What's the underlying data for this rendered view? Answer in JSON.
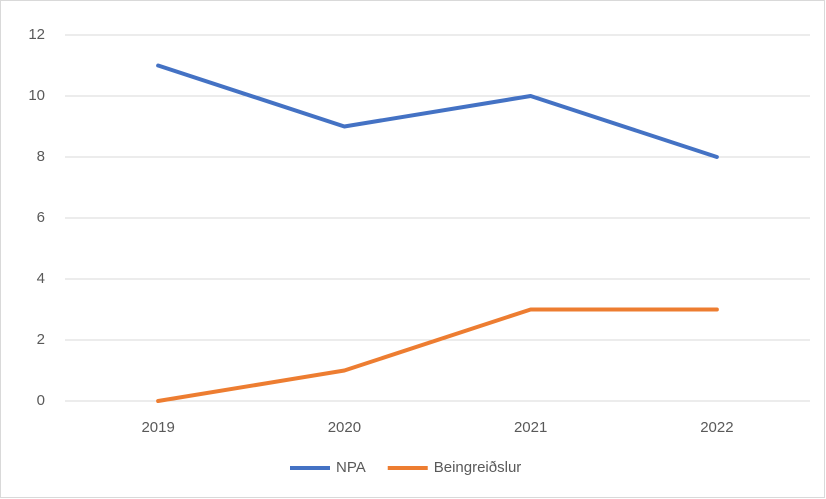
{
  "chart_data": {
    "type": "line",
    "categories": [
      "2019",
      "2020",
      "2021",
      "2022"
    ],
    "series": [
      {
        "name": "NPA",
        "color": "#4472c4",
        "values": [
          11,
          9,
          10,
          8
        ]
      },
      {
        "name": "Beingreiðslur",
        "color": "#ed7d31",
        "values": [
          0,
          1,
          3,
          3
        ]
      }
    ],
    "ylim": [
      0,
      12
    ],
    "yticks": [
      0,
      2,
      4,
      6,
      8,
      10,
      12
    ],
    "grid": true,
    "legend": "bottom"
  }
}
